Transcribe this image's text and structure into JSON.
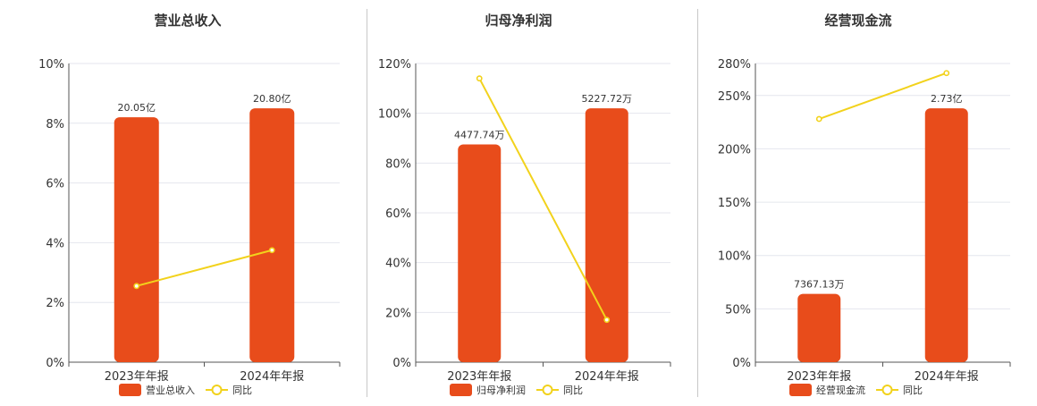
{
  "colors": {
    "bar": "#e84c1b",
    "line": "#f2d21c",
    "grid": "#e4e6ee",
    "axis": "#555555"
  },
  "chart_data": [
    {
      "type": "bar",
      "title": "营业总收入",
      "categories": [
        "2023年年报",
        "2024年年报"
      ],
      "ylim": [
        0,
        10
      ],
      "yticks": [
        "0%",
        "2%",
        "4%",
        "6%",
        "8%",
        "10%"
      ],
      "series": [
        {
          "name": "营业总收入",
          "type": "bar",
          "values": [
            8.2,
            8.5
          ],
          "labels": [
            "20.05亿",
            "20.80亿"
          ]
        },
        {
          "name": "同比",
          "type": "line",
          "values": [
            2.55,
            3.75
          ]
        }
      ]
    },
    {
      "type": "bar",
      "title": "归母净利润",
      "categories": [
        "2023年年报",
        "2024年年报"
      ],
      "ylim": [
        0,
        120
      ],
      "yticks": [
        "0%",
        "20%",
        "40%",
        "60%",
        "80%",
        "100%",
        "120%"
      ],
      "series": [
        {
          "name": "归母净利润",
          "type": "bar",
          "values": [
            87.5,
            102
          ],
          "labels": [
            "4477.74万",
            "5227.72万"
          ]
        },
        {
          "name": "同比",
          "type": "line",
          "values": [
            114,
            17
          ]
        }
      ]
    },
    {
      "type": "bar",
      "title": "经营现金流",
      "categories": [
        "2023年年报",
        "2024年年报"
      ],
      "ylim": [
        0,
        280
      ],
      "yticks": [
        "0%",
        "50%",
        "100%",
        "150%",
        "200%",
        "250%",
        "280%"
      ],
      "series": [
        {
          "name": "经营现金流",
          "type": "bar",
          "values": [
            64,
            238
          ],
          "labels": [
            "7367.13万",
            "2.73亿"
          ]
        },
        {
          "name": "同比",
          "type": "line",
          "values": [
            228,
            271
          ]
        }
      ]
    }
  ]
}
